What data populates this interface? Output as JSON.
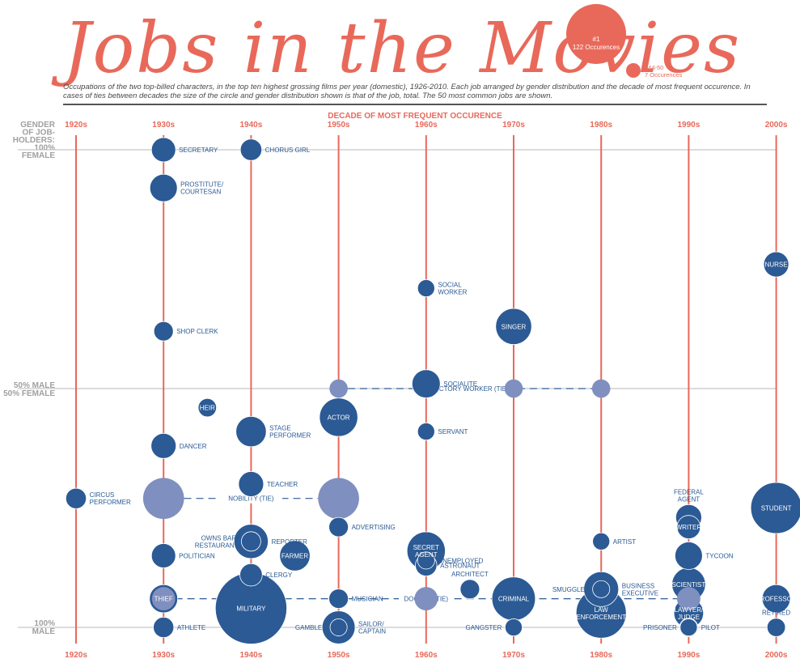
{
  "header": {
    "title": "Jobs in the Movies",
    "subtitle": "Occupations of the two top-billed characters, in the top ten highest grossing films per year (domestic), 1926-2010. Each job arranged by gender distribution and the decade of most frequent occurence. In cases of ties between decades the size of the circle and gender distribution shown is that of the job, total. The 50 most common jobs are shown."
  },
  "legend": {
    "big_line1": "#1",
    "big_line2": "122 Occurences",
    "small_line1": "#44-50",
    "small_line2": "7 Occurences"
  },
  "colors": {
    "accent": "#e8695a",
    "bubble": "#2b5a95",
    "tie_bubble": "#7f8fbf",
    "grid": "#b8b8b8"
  },
  "chart_data": {
    "type": "scatter",
    "title": "Jobs in the Movies",
    "xlabel": "DECADE OF MOST FREQUENT OCCURENCE",
    "ylabel_top": [
      "GENDER",
      "OF JOB-",
      "HOLDERS:",
      "100%",
      "FEMALE"
    ],
    "ylabel_mid": [
      "50% MALE",
      "50% FEMALE"
    ],
    "ylabel_bottom": [
      "100%",
      "MALE"
    ],
    "x_ticks": [
      "1920s",
      "1930s",
      "1940s",
      "1950s",
      "1960s",
      "1970s",
      "1980s",
      "1990s",
      "2000s"
    ],
    "y_axis": "percent female",
    "ylim": [
      0,
      100
    ],
    "size_encoding": "occurrences",
    "ties": [
      {
        "label": "FACTORY WORKER (TIE)",
        "decades": [
          1950,
          1970,
          1980
        ]
      },
      {
        "label": "NOBILITY (TIE)",
        "decades": [
          1930,
          1950
        ]
      },
      {
        "label": "DOCTOR (TIE)",
        "decades": [
          1930,
          1960,
          1990
        ]
      }
    ],
    "points": [
      {
        "job": "SECRETARY",
        "decade": 1930,
        "female_pct": 100,
        "occurrences": 14,
        "label_side": "right"
      },
      {
        "job": "CHORUS GIRL",
        "decade": 1940,
        "female_pct": 100,
        "occurrences": 11,
        "label_side": "right"
      },
      {
        "job": "PROSTITUTE/ COURTESAN",
        "decade": 1930,
        "female_pct": 92,
        "occurrences": 18,
        "label_side": "right"
      },
      {
        "job": "NURSE",
        "decade": 2000,
        "female_pct": 76,
        "occurrences": 15,
        "label_side": "in"
      },
      {
        "job": "SOCIAL WORKER",
        "decade": 1960,
        "female_pct": 71,
        "occurrences": 7,
        "label_side": "right"
      },
      {
        "job": "SINGER",
        "decade": 1970,
        "female_pct": 63,
        "occurrences": 31,
        "label_side": "in"
      },
      {
        "job": "SHOP CLERK",
        "decade": 1930,
        "female_pct": 62,
        "occurrences": 9,
        "label_side": "right"
      },
      {
        "job": "SOCIALITE",
        "decade": 1960,
        "female_pct": 51,
        "occurrences": 19,
        "label_side": "right"
      },
      {
        "job": "HEIR",
        "decade": 1935,
        "female_pct": 46,
        "occurrences": 8,
        "label_side": "in"
      },
      {
        "job": "ACTOR",
        "decade": 1950,
        "female_pct": 44,
        "occurrences": 35,
        "label_side": "in"
      },
      {
        "job": "STAGE PERFORMER",
        "decade": 1940,
        "female_pct": 41,
        "occurrences": 22,
        "label_side": "right"
      },
      {
        "job": "SERVANT",
        "decade": 1960,
        "female_pct": 41,
        "occurrences": 7,
        "label_side": "right"
      },
      {
        "job": "DANCER",
        "decade": 1930,
        "female_pct": 38,
        "occurrences": 15,
        "label_side": "right"
      },
      {
        "job": "TEACHER",
        "decade": 1940,
        "female_pct": 30,
        "occurrences": 15,
        "label_side": "right"
      },
      {
        "job": "CIRCUS PERFORMER",
        "decade": 1920,
        "female_pct": 27,
        "occurrences": 10,
        "label_side": "right"
      },
      {
        "job": "FEDERAL AGENT",
        "decade": 1990,
        "female_pct": 23,
        "occurrences": 16,
        "label_side": "above"
      },
      {
        "job": "STUDENT",
        "decade": 2000,
        "female_pct": 25,
        "occurrences": 62,
        "label_side": "in"
      },
      {
        "job": "WRITER",
        "decade": 1990,
        "female_pct": 21,
        "occurrences": 13,
        "label_side": "in"
      },
      {
        "job": "ADVERTISING",
        "decade": 1950,
        "female_pct": 21,
        "occurrences": 9,
        "label_side": "right"
      },
      {
        "job": "REPORTER",
        "decade": 1940,
        "female_pct": 18,
        "occurrences": 28,
        "label_side": "right"
      },
      {
        "job": "OWNS BAR/ RESTAURANT",
        "decade": 1940,
        "female_pct": 18,
        "occurrences": 9,
        "label_side": "left"
      },
      {
        "job": "ARTIST",
        "decade": 1980,
        "female_pct": 18,
        "occurrences": 7,
        "label_side": "right"
      },
      {
        "job": "SECRET AGENT",
        "decade": 1960,
        "female_pct": 16,
        "occurrences": 35,
        "label_side": "in"
      },
      {
        "job": "UNEMPLOYED",
        "decade": 1960,
        "female_pct": 14,
        "occurrences": 7,
        "label_side": "right"
      },
      {
        "job": "FARMER",
        "decade": 1945,
        "female_pct": 15,
        "occurrences": 22,
        "label_side": "in"
      },
      {
        "job": "POLITICIAN",
        "decade": 1930,
        "female_pct": 15,
        "occurrences": 14,
        "label_side": "right"
      },
      {
        "job": "TYCOON",
        "decade": 1990,
        "female_pct": 15,
        "occurrences": 18,
        "label_side": "right"
      },
      {
        "job": "ASTRONAUT",
        "decade": 1960,
        "female_pct": 13,
        "occurrences": 11,
        "label_side": "right"
      },
      {
        "job": "CLERGY",
        "decade": 1940,
        "female_pct": 11,
        "occurrences": 12,
        "label_side": "right"
      },
      {
        "job": "ARCHITECT",
        "decade": 1965,
        "female_pct": 8,
        "occurrences": 9,
        "label_side": "above"
      },
      {
        "job": "SCIENTIST",
        "decade": 1990,
        "female_pct": 9,
        "occurrences": 27,
        "label_side": "in"
      },
      {
        "job": "BUSINESS EXECUTIVE",
        "decade": 1980,
        "female_pct": 8,
        "occurrences": 29,
        "label_side": "right"
      },
      {
        "job": "SMUGGLER",
        "decade": 1980,
        "female_pct": 8,
        "occurrences": 7,
        "label_side": "left"
      },
      {
        "job": "THIEF",
        "decade": 1930,
        "female_pct": 6,
        "occurrences": 19,
        "label_side": "in"
      },
      {
        "job": "MUSICIAN",
        "decade": 1950,
        "female_pct": 6,
        "occurrences": 9,
        "label_side": "right"
      },
      {
        "job": "CRIMINAL",
        "decade": 1970,
        "female_pct": 6,
        "occurrences": 45,
        "label_side": "in"
      },
      {
        "job": "PROFESSOR",
        "decade": 2000,
        "female_pct": 6,
        "occurrences": 19,
        "label_side": "in"
      },
      {
        "job": "MILITARY",
        "decade": 1940,
        "female_pct": 4,
        "occurrences": 122,
        "label_side": "in"
      },
      {
        "job": "LAW ENFORCEMENT",
        "decade": 1980,
        "female_pct": 3,
        "occurrences": 60,
        "label_side": "in"
      },
      {
        "job": "LAWYER/ JUDGE",
        "decade": 1990,
        "female_pct": 3,
        "occurrences": 21,
        "label_side": "in"
      },
      {
        "job": "RETIRED",
        "decade": 2000,
        "female_pct": 0,
        "occurrences": 8,
        "label_side": "above"
      },
      {
        "job": "ATHLETE",
        "decade": 1930,
        "female_pct": 0,
        "occurrences": 10,
        "label_side": "right"
      },
      {
        "job": "SAILOR/ CAPTAIN",
        "decade": 1950,
        "female_pct": 0,
        "occurrences": 26,
        "label_side": "right"
      },
      {
        "job": "GAMBLER",
        "decade": 1950,
        "female_pct": 0,
        "occurrences": 7,
        "label_side": "left"
      },
      {
        "job": "GANGSTER",
        "decade": 1970,
        "female_pct": 0,
        "occurrences": 7,
        "label_side": "left"
      },
      {
        "job": "PRISONER",
        "decade": 1990,
        "female_pct": 0,
        "occurrences": 7,
        "label_side": "left"
      },
      {
        "job": "PILOT",
        "decade": 1990,
        "female_pct": 0,
        "occurrences": 8,
        "label_side": "right"
      },
      {
        "job": "NOBILITY (TIE)",
        "decade": 1930,
        "female_pct": 27,
        "occurrences": 40,
        "tie": true,
        "label_side": "none"
      },
      {
        "job": "NOBILITY (TIE)",
        "decade": 1950,
        "female_pct": 27,
        "occurrences": 40,
        "tie": true,
        "label_side": "none"
      },
      {
        "job": "FACTORY WORKER (TIE)",
        "decade": 1950,
        "female_pct": 50,
        "occurrences": 8,
        "tie": true,
        "label_side": "none"
      },
      {
        "job": "FACTORY WORKER (TIE)",
        "decade": 1970,
        "female_pct": 50,
        "occurrences": 8,
        "tie": true,
        "label_side": "none"
      },
      {
        "job": "FACTORY WORKER (TIE)",
        "decade": 1980,
        "female_pct": 50,
        "occurrences": 8,
        "tie": true,
        "label_side": "none"
      },
      {
        "job": "DOCTOR (TIE)",
        "decade": 1930,
        "female_pct": 6,
        "occurrences": 13,
        "tie": true,
        "label_side": "none"
      },
      {
        "job": "DOCTOR (TIE)",
        "decade": 1960,
        "female_pct": 6,
        "occurrences": 13,
        "tie": true,
        "label_side": "none"
      },
      {
        "job": "DOCTOR (TIE)",
        "decade": 1990,
        "female_pct": 6,
        "occurrences": 13,
        "tie": true,
        "label_side": "none"
      }
    ]
  }
}
